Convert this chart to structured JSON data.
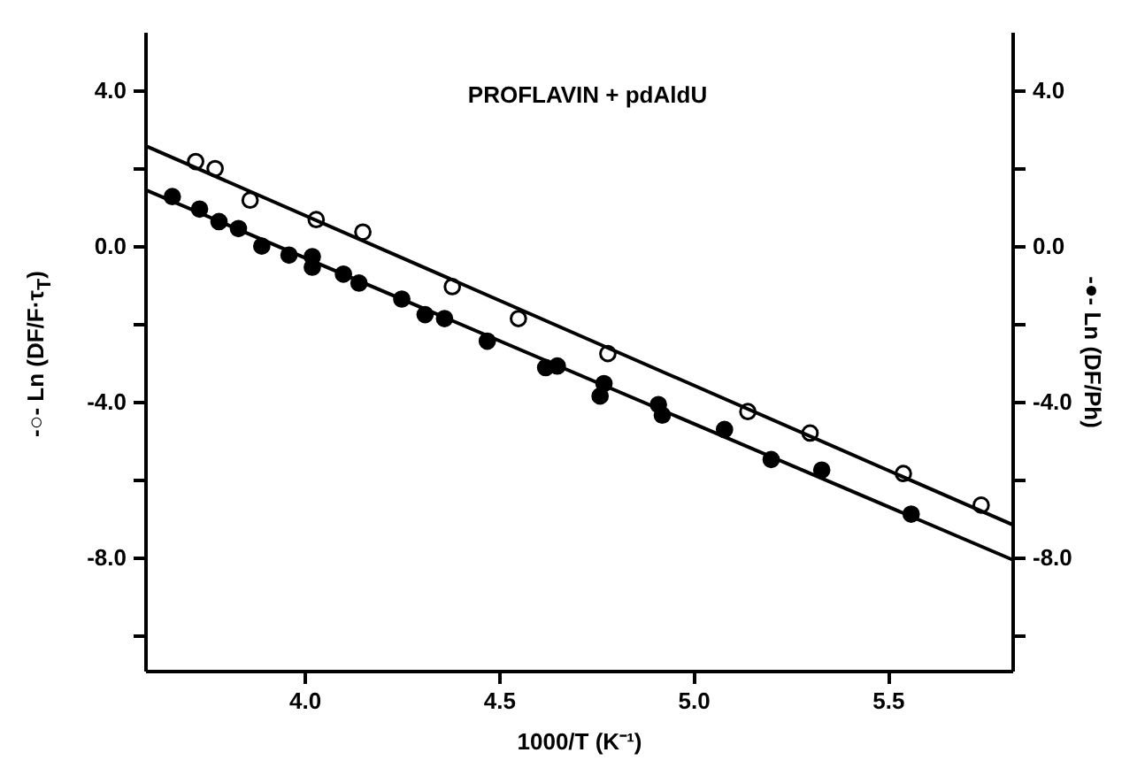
{
  "chart_data": {
    "type": "scatter",
    "annotations": [
      "PROFLAVIN + pdAldU"
    ],
    "xlabel": "1000/T (K⁻¹)",
    "ylabel": "-○- Ln (DF/F·τ$_{T}$)",
    "y2label": "-●- Ln (DF/Ph)",
    "xlim": [
      3.59,
      5.82
    ],
    "ylim": [
      -10.9,
      5.5
    ],
    "y2lim": [
      -10.9,
      5.5
    ],
    "xticks": [
      {
        "value": 4,
        "label": "4.0"
      },
      {
        "value": 4.5,
        "label": "4.5"
      },
      {
        "value": 5,
        "label": "5.0"
      },
      {
        "value": 5.5,
        "label": "5.5"
      }
    ],
    "yticks": [
      {
        "value": -10,
        "label": null
      },
      {
        "value": -8,
        "label": "-8.0"
      },
      {
        "value": -6,
        "label": null
      },
      {
        "value": -4,
        "label": "-4.0"
      },
      {
        "value": -2,
        "label": null
      },
      {
        "value": 0,
        "label": "0.0"
      },
      {
        "value": 2,
        "label": null
      },
      {
        "value": 4,
        "label": "4.0"
      }
    ],
    "y2ticks": [
      {
        "value": -10,
        "label": null
      },
      {
        "value": -8,
        "label": "-8.0"
      },
      {
        "value": -6,
        "label": null
      },
      {
        "value": -4,
        "label": "-4.0"
      },
      {
        "value": -2,
        "label": null
      },
      {
        "value": 0,
        "label": "0.0"
      },
      {
        "value": 2,
        "label": null
      },
      {
        "value": 4,
        "label": "4.0"
      }
    ],
    "grid": false,
    "series": [
      {
        "marker": "circle",
        "color": "#ffffff",
        "x": [
          3.72,
          3.77,
          3.86,
          4.03,
          4.15,
          4.38,
          4.55,
          4.78,
          5.14,
          5.3,
          5.54,
          5.74
        ],
        "values": [
          2.17,
          1.99,
          1.18,
          0.68,
          0.36,
          -1.04,
          -1.86,
          -2.76,
          -4.25,
          -4.8,
          -5.84,
          -6.65
        ]
      },
      {
        "type": "line",
        "marker": "none",
        "color": "#000000",
        "x": [
          3.59,
          5.82
        ],
        "values": [
          2.58,
          -7.15
        ]
      },
      {
        "marker": "circle",
        "axis": "y2",
        "color": "#000000",
        "x": [
          3.66,
          3.73,
          3.78,
          3.83,
          3.89,
          3.96,
          4.02,
          4.02,
          4.1,
          4.14,
          4.25,
          4.31,
          4.36,
          4.47,
          4.62,
          4.65,
          4.77,
          4.76,
          4.91,
          4.92,
          5.08,
          5.2,
          5.33,
          5.56
        ],
        "values": [
          1.27,
          0.95,
          0.63,
          0.45,
          0.0,
          -0.23,
          -0.27,
          -0.54,
          -0.72,
          -0.95,
          -1.36,
          -1.76,
          -1.86,
          -2.44,
          -3.12,
          -3.08,
          -3.53,
          -3.85,
          -4.07,
          -4.34,
          -4.71,
          -5.48,
          -5.75,
          -6.88
        ]
      },
      {
        "type": "line",
        "marker": "none",
        "axis": "y2",
        "color": "#000000",
        "x": [
          3.59,
          5.82
        ],
        "values": [
          1.45,
          -8.05
        ]
      }
    ]
  }
}
